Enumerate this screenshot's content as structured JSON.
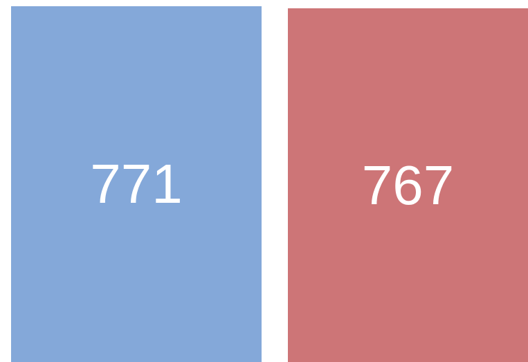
{
  "cards": [
    {
      "value": "771",
      "color": "#84a8d9"
    },
    {
      "value": "767",
      "color": "#cd7577"
    }
  ]
}
